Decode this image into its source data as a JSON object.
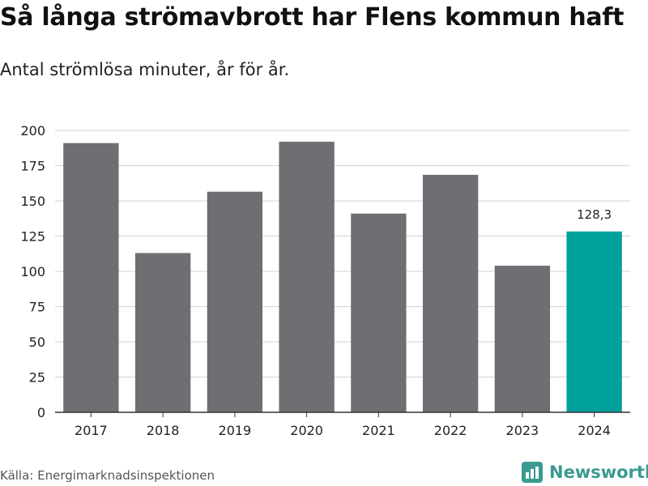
{
  "header": {
    "title": "Så långa strömavbrott har Flens kommun haft",
    "subtitle": "Antal strömlösa minuter, år för år."
  },
  "footer": {
    "source": "Källa: Energimarknadsinspektionen",
    "brand": "Newsworthy"
  },
  "colors": {
    "bar": "#6e6e73",
    "highlight": "#00a19a",
    "grid": "#d9d9d9",
    "axis": "#333333",
    "brand": "#3b9a92"
  },
  "chart_data": {
    "type": "bar",
    "title": "Så långa strömavbrott har Flens kommun haft",
    "subtitle": "Antal strömlösa minuter, år för år.",
    "xlabel": "",
    "ylabel": "",
    "categories": [
      "2017",
      "2018",
      "2019",
      "2020",
      "2021",
      "2022",
      "2023",
      "2024"
    ],
    "values": [
      191,
      113,
      156.5,
      192,
      141,
      168.5,
      104,
      128.3
    ],
    "highlight_index": 7,
    "data_labels": [
      {
        "index": 7,
        "text": "128,3"
      }
    ],
    "yticks": [
      0,
      25,
      50,
      75,
      100,
      125,
      150,
      175,
      200
    ],
    "ylim": [
      0,
      200
    ],
    "grid": true,
    "legend": "none"
  }
}
